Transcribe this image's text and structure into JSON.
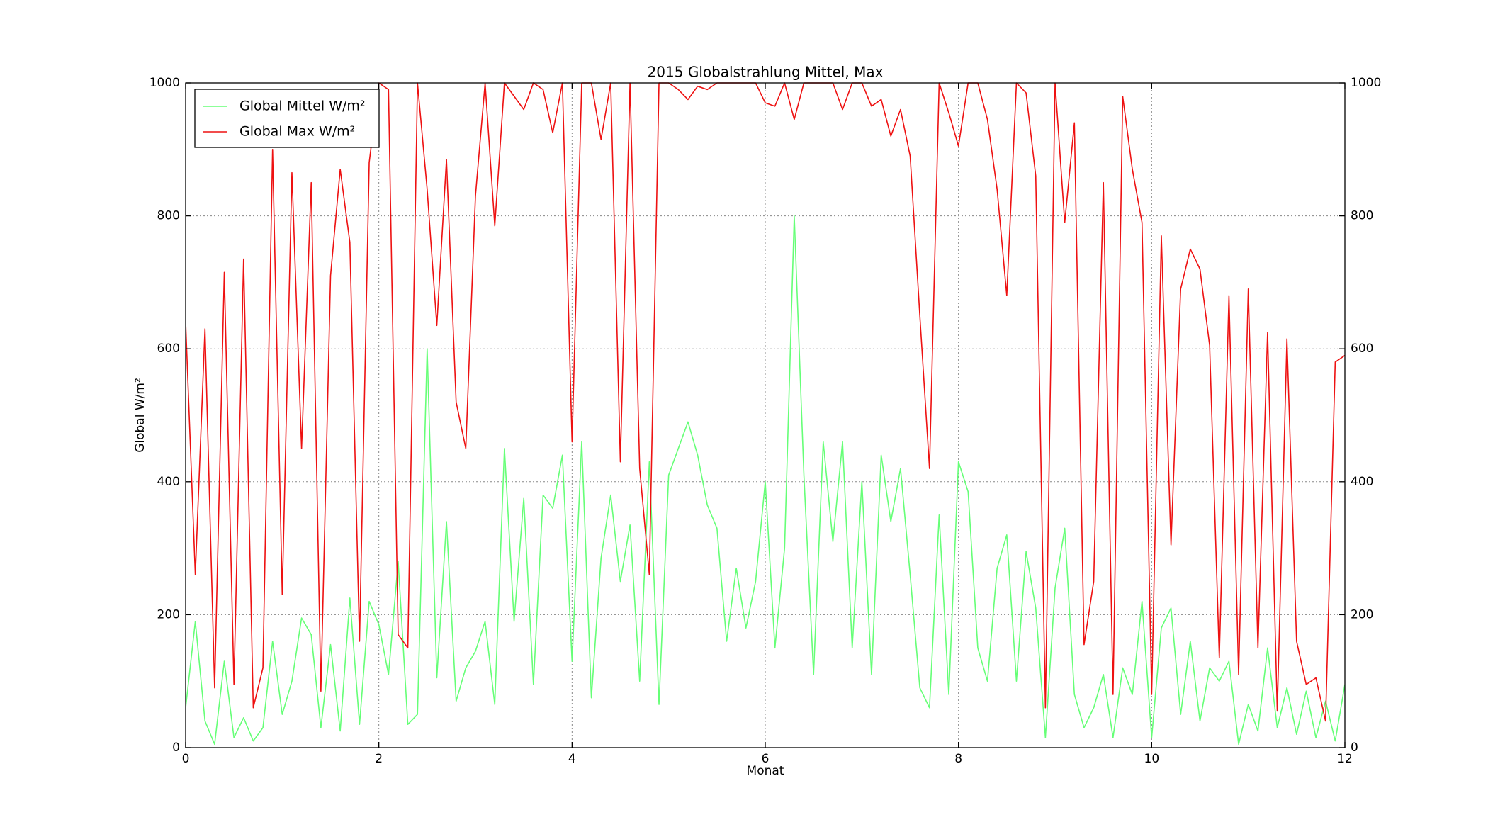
{
  "chart_data": {
    "type": "line",
    "title": "2015 Globalstrahlung Mittel, Max",
    "xlabel": "Monat",
    "ylabel": "Global W/m²",
    "xlim": [
      0,
      12
    ],
    "xticks": [
      0,
      2,
      4,
      6,
      8,
      10,
      12
    ],
    "ylim": [
      0,
      1000
    ],
    "yticks": [
      0,
      200,
      400,
      600,
      800,
      1000
    ],
    "y2lim": [
      0,
      1000
    ],
    "y2ticks": [
      0,
      200,
      400,
      600,
      800,
      1000
    ],
    "grid": true,
    "legend": "upper left",
    "x": [
      0,
      0.1,
      0.2,
      0.3,
      0.4,
      0.5,
      0.6,
      0.7,
      0.8,
      0.9,
      1,
      1.1,
      1.2,
      1.3,
      1.4,
      1.5,
      1.6,
      1.7,
      1.8,
      1.9,
      2,
      2.1,
      2.2,
      2.3,
      2.4,
      2.5,
      2.6,
      2.7,
      2.8,
      2.9,
      3,
      3.1,
      3.2,
      3.3,
      3.4,
      3.5,
      3.6,
      3.7,
      3.8,
      3.9,
      4,
      4.1,
      4.2,
      4.3,
      4.4,
      4.5,
      4.6,
      4.7,
      4.8,
      4.9,
      5,
      5.1,
      5.2,
      5.3,
      5.4,
      5.5,
      5.6,
      5.7,
      5.8,
      5.9,
      6,
      6.1,
      6.2,
      6.3,
      6.4,
      6.5,
      6.6,
      6.7,
      6.8,
      6.9,
      7,
      7.1,
      7.2,
      7.3,
      7.4,
      7.5,
      7.6,
      7.7,
      7.8,
      7.9,
      8,
      8.1,
      8.2,
      8.3,
      8.4,
      8.5,
      8.6,
      8.7,
      8.8,
      8.9,
      9,
      9.1,
      9.2,
      9.3,
      9.4,
      9.5,
      9.6,
      9.7,
      9.8,
      9.9,
      10,
      10.1,
      10.2,
      10.3,
      10.4,
      10.5,
      10.6,
      10.7,
      10.8,
      10.9,
      11,
      11.1,
      11.2,
      11.3,
      11.4,
      11.5,
      11.6,
      11.7,
      11.8,
      11.9,
      12
    ],
    "series": [
      {
        "name": "Global Mittel W/m²",
        "color": "#66ff77",
        "values": [
          60,
          190,
          40,
          5,
          130,
          15,
          45,
          10,
          30,
          160,
          50,
          100,
          195,
          170,
          30,
          155,
          25,
          225,
          35,
          220,
          185,
          110,
          280,
          35,
          50,
          600,
          105,
          340,
          70,
          120,
          145,
          190,
          65,
          450,
          190,
          375,
          95,
          380,
          360,
          440,
          130,
          460,
          75,
          285,
          380,
          250,
          335,
          100,
          430,
          65,
          410,
          450,
          490,
          440,
          365,
          330,
          160,
          270,
          180,
          250,
          400,
          150,
          300,
          800,
          410,
          110,
          460,
          310,
          460,
          150,
          400,
          110,
          440,
          340,
          420,
          260,
          90,
          60,
          350,
          80,
          430,
          385,
          150,
          100,
          270,
          320,
          100,
          295,
          210,
          15,
          240,
          330,
          80,
          30,
          60,
          110,
          15,
          120,
          80,
          220,
          15,
          180,
          210,
          50,
          160,
          40,
          120,
          100,
          130,
          5,
          65,
          25,
          150,
          30,
          90,
          20,
          85,
          15,
          70,
          10,
          95
        ]
      },
      {
        "name": "Global Max W/m²",
        "color": "#ee1111",
        "values": [
          640,
          260,
          630,
          90,
          715,
          95,
          735,
          60,
          120,
          900,
          230,
          865,
          450,
          850,
          85,
          710,
          870,
          760,
          160,
          880,
          1000,
          990,
          170,
          150,
          1000,
          840,
          635,
          885,
          520,
          450,
          830,
          1000,
          785,
          1000,
          980,
          960,
          1000,
          990,
          925,
          1000,
          460,
          1000,
          1000,
          915,
          1000,
          430,
          1000,
          420,
          260,
          1000,
          1000,
          990,
          975,
          995,
          990,
          1000,
          1000,
          1000,
          1000,
          1000,
          970,
          965,
          1000,
          945,
          1000,
          1000,
          1000,
          1000,
          960,
          1000,
          1000,
          965,
          975,
          920,
          960,
          890,
          650,
          420,
          1000,
          955,
          905,
          1000,
          1000,
          945,
          840,
          680,
          1000,
          985,
          860,
          60,
          1000,
          790,
          940,
          155,
          250,
          850,
          80,
          980,
          870,
          790,
          80,
          770,
          305,
          690,
          750,
          720,
          605,
          135,
          680,
          110,
          690,
          150,
          625,
          55,
          615,
          160,
          95,
          105,
          40,
          580,
          590
        ]
      }
    ]
  }
}
